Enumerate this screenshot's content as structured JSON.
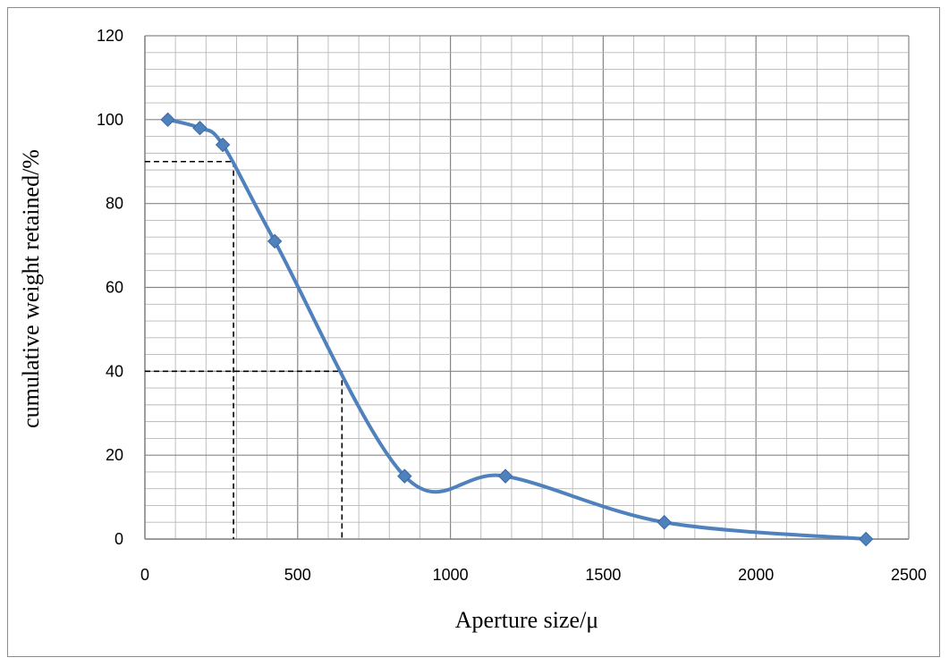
{
  "chart_data": {
    "type": "line",
    "title": "",
    "xlabel": "Aperture size/μ",
    "ylabel": "cumulative weight retained/%",
    "xlim": [
      0,
      2500
    ],
    "ylim": [
      0,
      120
    ],
    "x_ticks": [
      0,
      500,
      1000,
      1500,
      2000,
      2500
    ],
    "y_ticks": [
      0,
      20,
      40,
      60,
      80,
      100,
      120
    ],
    "x_ticks_labels": [
      "0",
      "500",
      "1000",
      "1500",
      "2000",
      "2500"
    ],
    "y_ticks_labels": [
      "0",
      "20",
      "40",
      "60",
      "80",
      "100",
      "120"
    ],
    "grid": true,
    "smooth": true,
    "series": [
      {
        "x": [
          75,
          180,
          255,
          425,
          850,
          1180,
          1700,
          2360
        ],
        "y": [
          100,
          98,
          94,
          71,
          15,
          15,
          4,
          0
        ],
        "color": "#4f81bd",
        "marker": "diamond"
      }
    ],
    "reference_lines": [
      {
        "x": 290,
        "y": 90
      },
      {
        "x": 645,
        "y": 40
      }
    ]
  }
}
